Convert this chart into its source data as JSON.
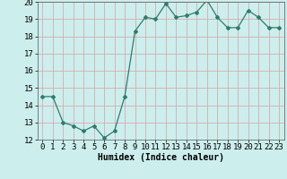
{
  "x": [
    0,
    1,
    2,
    3,
    4,
    5,
    6,
    7,
    8,
    9,
    10,
    11,
    12,
    13,
    14,
    15,
    16,
    17,
    18,
    19,
    20,
    21,
    22,
    23
  ],
  "y": [
    14.5,
    14.5,
    13.0,
    12.8,
    12.5,
    12.8,
    12.1,
    12.5,
    14.5,
    18.3,
    19.1,
    19.0,
    19.9,
    19.1,
    19.2,
    19.4,
    20.1,
    19.1,
    18.5,
    18.5,
    19.5,
    19.1,
    18.5,
    18.5
  ],
  "xlabel": "Humidex (Indice chaleur)",
  "ylim": [
    12,
    20
  ],
  "xlim": [
    -0.5,
    23.5
  ],
  "yticks": [
    12,
    13,
    14,
    15,
    16,
    17,
    18,
    19,
    20
  ],
  "xticks": [
    0,
    1,
    2,
    3,
    4,
    5,
    6,
    7,
    8,
    9,
    10,
    11,
    12,
    13,
    14,
    15,
    16,
    17,
    18,
    19,
    20,
    21,
    22,
    23
  ],
  "line_color": "#2e7d6e",
  "marker": "D",
  "marker_size": 2.0,
  "bg_color": "#cceeed",
  "grid_color": "#b0d8d6",
  "xlabel_fontsize": 7,
  "tick_fontsize": 6.5
}
